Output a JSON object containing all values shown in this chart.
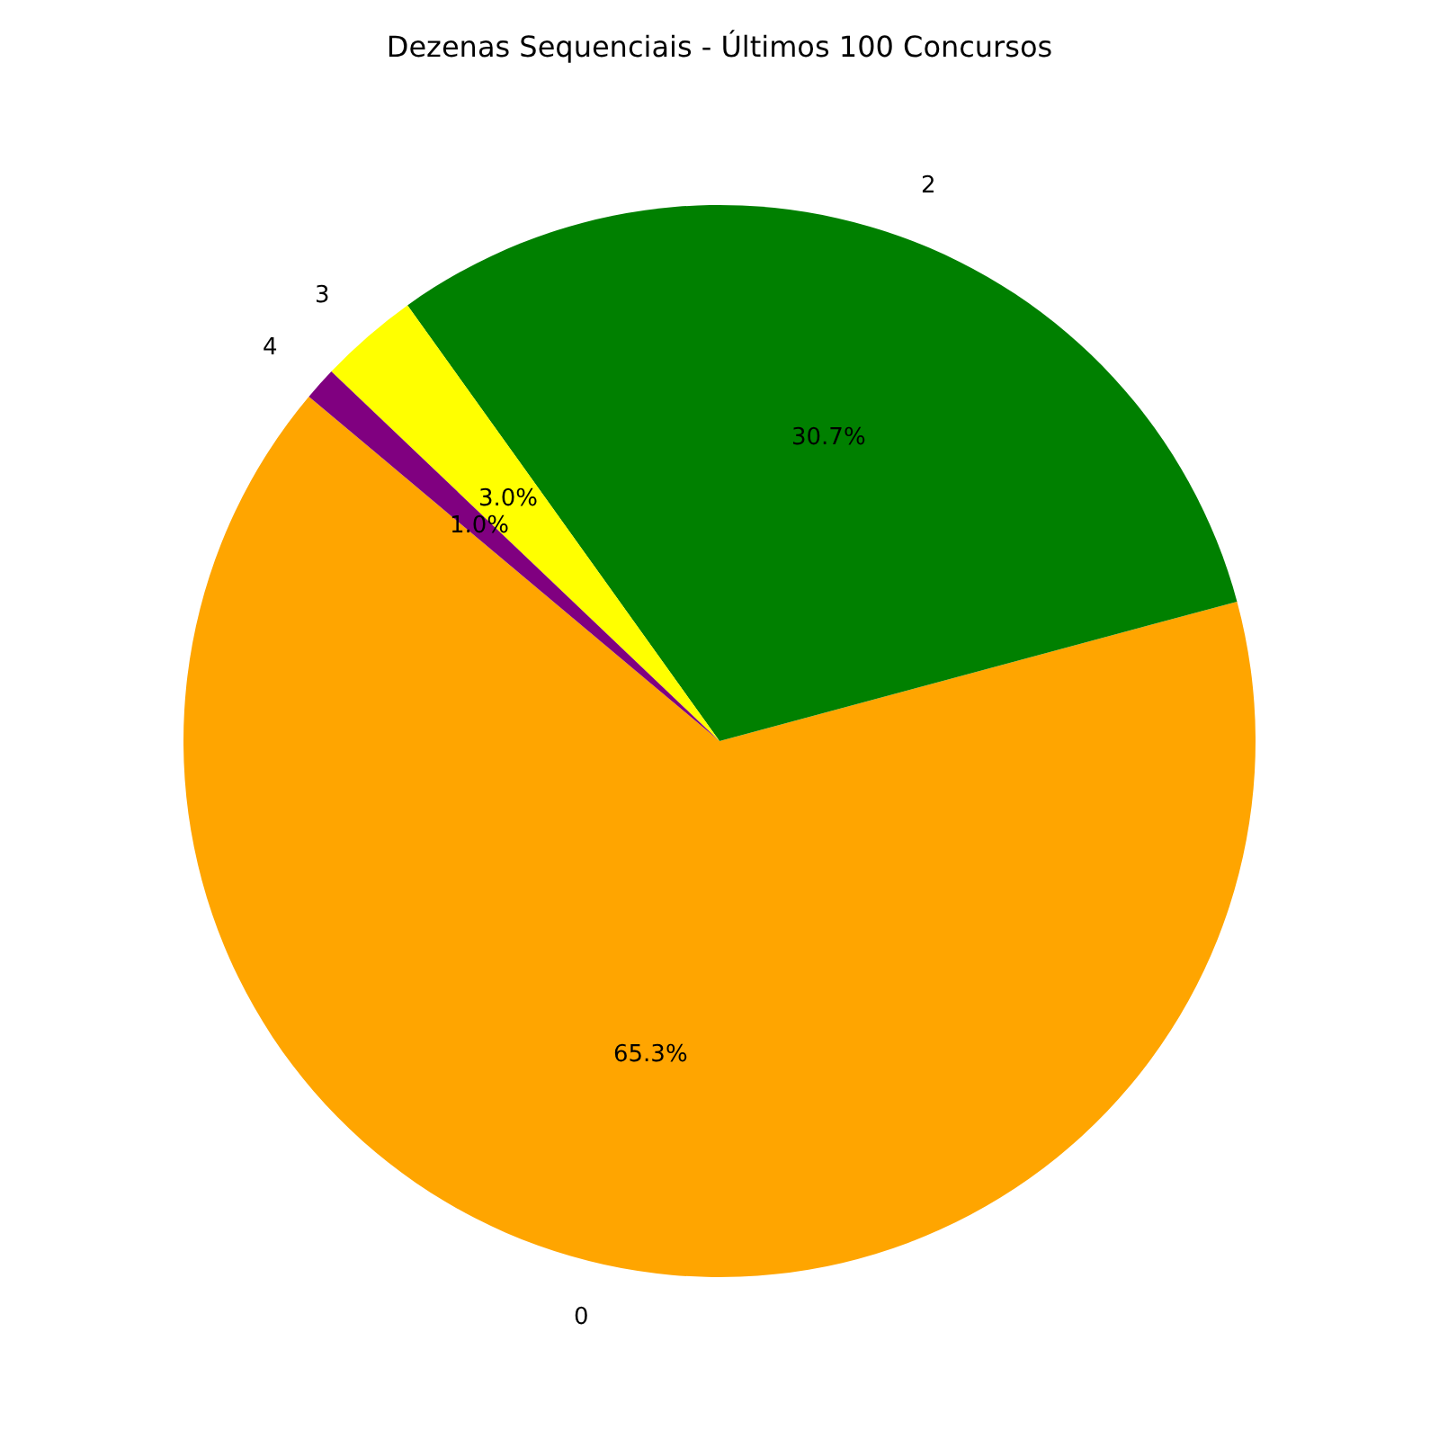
{
  "chart_data": {
    "type": "pie",
    "title": "Dezenas Sequenciais - Últimos 100 Concursos",
    "categories": [
      "0",
      "2",
      "3",
      "4"
    ],
    "values": [
      65.3,
      30.7,
      3.0,
      1.0
    ],
    "colors": [
      "#ffa500",
      "#008000",
      "#ffff00",
      "#800080"
    ],
    "value_labels": [
      "65.3%",
      "30.7%",
      "3.0%",
      "1.0%"
    ]
  }
}
